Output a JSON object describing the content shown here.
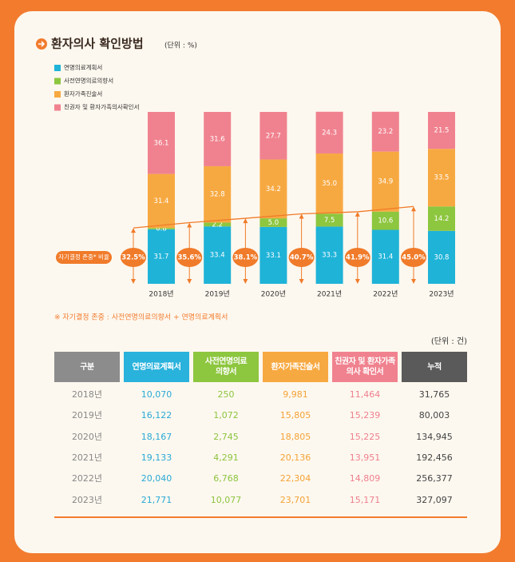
{
  "chart_data": {
    "type": "bar",
    "stacked": true,
    "title": "환자의사 확인방법",
    "subtitle": "(단위 : %)",
    "categories": [
      "2018년",
      "2019년",
      "2020년",
      "2021년",
      "2022년",
      "2023년"
    ],
    "ylim": [
      0,
      100
    ],
    "series": [
      {
        "name": "연명의료계획서",
        "color": "#1fb3d8",
        "values": [
          31.7,
          33.4,
          33.1,
          33.3,
          31.4,
          30.8
        ]
      },
      {
        "name": "사전연명의료의향서",
        "color": "#8dc63f",
        "values": [
          0.8,
          2.2,
          5.0,
          7.5,
          10.6,
          14.2
        ],
        "value_labels": [
          "0.8",
          "2.2",
          "5.0",
          "7.5",
          "10.6",
          "14.2"
        ]
      },
      {
        "name": "환자가족진술서",
        "color": "#f7a941",
        "values": [
          31.4,
          32.8,
          34.2,
          35.0,
          34.9,
          33.5
        ],
        "value_labels": [
          "31.4",
          "32.8",
          "34.2",
          "35.0",
          "34.9",
          "33.5"
        ]
      },
      {
        "name": "친권자 및 환자가족의사확인서",
        "color": "#f0828f",
        "values": [
          36.1,
          31.6,
          27.7,
          24.3,
          23.2,
          21.5
        ]
      }
    ],
    "line": {
      "type": "line",
      "name": "자기결정 존중* 비율",
      "color": "#f07b2a",
      "values": [
        32.5,
        35.6,
        38.1,
        40.7,
        41.9,
        45.0
      ],
      "value_labels": [
        "32.5%",
        "35.6%",
        "38.1%",
        "40.7%",
        "41.9%",
        "45.0%"
      ]
    },
    "note": "※ 자기결정 존중 : 사전연명의료의향서 + 연명의료계획서"
  },
  "table": {
    "unit": "(단위 : 건)",
    "header": [
      "구분",
      "연명의료계획서",
      "사전연명의료\n의향서",
      "환자가족진술서",
      "친권자 및 환자가족\n의사 확인서",
      "누적"
    ],
    "rows": [
      [
        "2018년",
        "10,070",
        "250",
        "9,981",
        "11,464",
        "31,765"
      ],
      [
        "2019년",
        "16,122",
        "1,072",
        "15,805",
        "15,239",
        "80,003"
      ],
      [
        "2020년",
        "18,167",
        "2,745",
        "18,805",
        "15,225",
        "134,945"
      ],
      [
        "2021년",
        "19,133",
        "4,291",
        "20,136",
        "13,951",
        "192,456"
      ],
      [
        "2022년",
        "20,040",
        "6,768",
        "22,304",
        "14,809",
        "256,377"
      ],
      [
        "2023년",
        "21,771",
        "10,077",
        "23,701",
        "15,171",
        "327,097"
      ]
    ]
  }
}
